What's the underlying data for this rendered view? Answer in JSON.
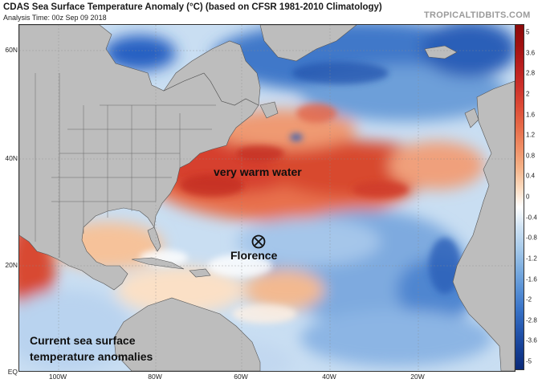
{
  "title": "CDAS Sea Surface Temperature Anomaly (°C) (based on CFSR 1981-2010 Climatology)",
  "subtitle": "Analysis Time: 00z Sep 09 2018",
  "brand": "TROPICALTIDBITS.COM",
  "latitude_labels": [
    "60N",
    "40N",
    "20N",
    "EQ"
  ],
  "longitude_labels": [
    "100W",
    "80W",
    "60W",
    "40W",
    "20W"
  ],
  "colorbar": {
    "ticks": [
      "5",
      "3.6",
      "2.8",
      "2",
      "1.6",
      "1.2",
      "0.8",
      "0.4",
      "0",
      "-0.4",
      "-0.8",
      "-1.2",
      "-1.6",
      "-2",
      "-2.8",
      "-3.6",
      "-5"
    ],
    "colors": [
      "#8b0a0a",
      "#a01010",
      "#b81e1e",
      "#cc2f2a",
      "#dc4a36",
      "#e66a48",
      "#ef8c64",
      "#f4b086",
      "#fbd9bd",
      "#ffffff",
      "#cfe2f3",
      "#a9cbea",
      "#7fafe0",
      "#5a92d6",
      "#3a74c8",
      "#2558b0",
      "#153f95",
      "#0b2a78"
    ]
  },
  "annotations": {
    "warm_water": "very warm water",
    "storm": "Florence",
    "caption_line1": "Current sea surface",
    "caption_line2": "temperature anomalies"
  },
  "icons": {
    "storm": "hurricane-symbol-icon"
  }
}
